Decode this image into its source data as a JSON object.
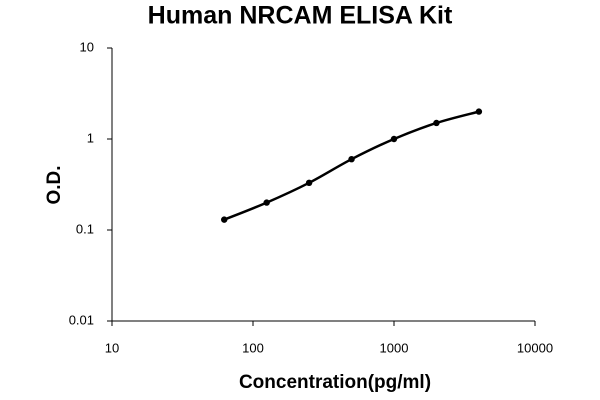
{
  "chart_data": {
    "type": "line",
    "title": "Human NRCAM ELISA Kit",
    "x_label": "Concentration(pg/ml)",
    "y_label": "O.D.",
    "x": [
      62.5,
      125,
      250,
      500,
      1000,
      2000,
      4000
    ],
    "series": [
      {
        "color": "#000000",
        "values": [
          0.13,
          0.2,
          0.33,
          0.6,
          1.0,
          1.5,
          2.0
        ]
      }
    ],
    "xlim": [
      10,
      10000
    ],
    "xticks": [
      10,
      100,
      1000,
      10000
    ],
    "ylim": [
      0.01,
      10
    ],
    "yticks": [
      0.01,
      0.1,
      1,
      10
    ],
    "xscale": "log",
    "yscale": "log",
    "grid": false
  }
}
